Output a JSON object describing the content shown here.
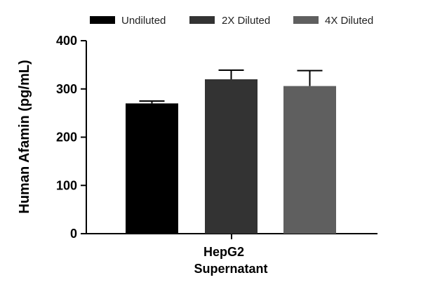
{
  "chart_data": {
    "type": "bar",
    "title": "",
    "xlabel": "",
    "ylabel": "Human Afamin (pg/mL)",
    "ylim": [
      0,
      400
    ],
    "yticks": [
      0,
      100,
      200,
      300,
      400
    ],
    "category_label_lines": [
      "HepG2",
      "Supernatant"
    ],
    "legend_position": "top",
    "grid": false,
    "series": [
      {
        "name": "Undiluted",
        "value": 270,
        "error": 5,
        "color": "#000000"
      },
      {
        "name": "2X Diluted",
        "value": 320,
        "error": 19,
        "color": "#333333"
      },
      {
        "name": "4X Diluted",
        "value": 306,
        "error": 32,
        "color": "#5f5f5f"
      }
    ]
  }
}
